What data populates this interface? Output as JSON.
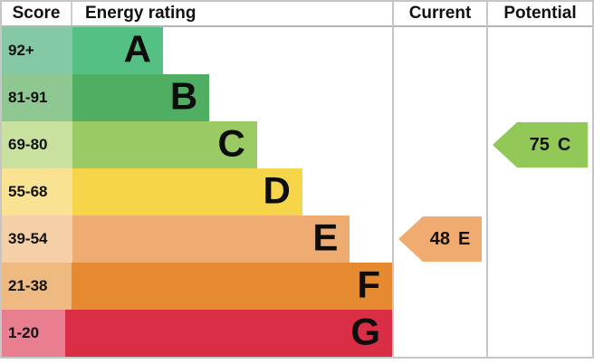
{
  "header": {
    "score": "Score",
    "energy_rating": "Energy rating",
    "current": "Current",
    "potential": "Potential"
  },
  "rows": [
    {
      "score": "92+",
      "letter": "A",
      "bar_color": "#55c083",
      "score_color": "#84c8a6",
      "width_pct": 23.2
    },
    {
      "score": "81-91",
      "letter": "B",
      "bar_color": "#50ae62",
      "score_color": "#8fc793",
      "width_pct": 35.1
    },
    {
      "score": "69-80",
      "letter": "C",
      "bar_color": "#9aca64",
      "score_color": "#c8e19f",
      "width_pct": 47.3
    },
    {
      "score": "55-68",
      "letter": "D",
      "bar_color": "#f6d54b",
      "score_color": "#f9e392",
      "width_pct": 58.9
    },
    {
      "score": "39-54",
      "letter": "E",
      "bar_color": "#efac72",
      "score_color": "#f5cfa7",
      "width_pct": 71.1
    },
    {
      "score": "21-38",
      "letter": "F",
      "bar_color": "#e58a31",
      "score_color": "#efba81",
      "width_pct": 82.7
    },
    {
      "score": "1-20",
      "letter": "G",
      "bar_color": "#da2e46",
      "score_color": "#e87e90",
      "width_pct": 94.1
    }
  ],
  "current": {
    "value": "48",
    "rating": "E",
    "color": "#f0ab70",
    "row_index": 4
  },
  "potential": {
    "value": "75",
    "rating": "C",
    "color": "#92c857",
    "row_index": 2
  },
  "chart_data": {
    "type": "bar",
    "title": "Energy rating",
    "categories": [
      "A",
      "B",
      "C",
      "D",
      "E",
      "F",
      "G"
    ],
    "score_bands": [
      "92+",
      "81-91",
      "69-80",
      "55-68",
      "39-54",
      "21-38",
      "1-20"
    ],
    "bar_lengths_pct": [
      23.2,
      35.1,
      47.3,
      58.9,
      71.1,
      82.7,
      94.1
    ],
    "band_colors": [
      "#55c083",
      "#50ae62",
      "#9aca64",
      "#f6d54b",
      "#efac72",
      "#e58a31",
      "#da2e46"
    ],
    "current": {
      "score": 48,
      "rating": "E"
    },
    "potential": {
      "score": 75,
      "rating": "C"
    },
    "legend_position": "none",
    "grid": false
  }
}
